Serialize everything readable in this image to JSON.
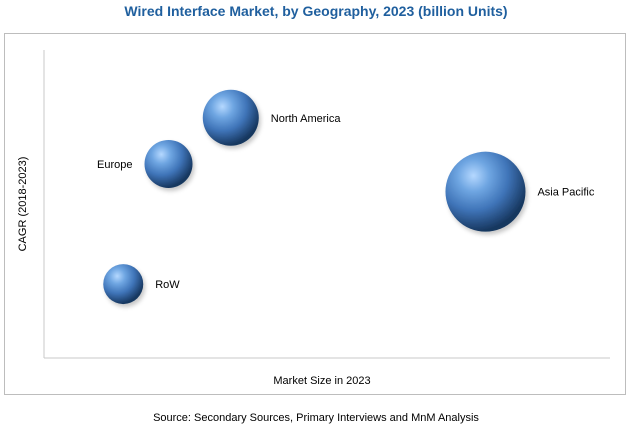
{
  "title": "Wired Interface Market, by Geography, 2023 (billion Units)",
  "source": "Source: Secondary Sources, Primary Interviews and MnM Analysis",
  "chart_data": {
    "type": "bubble",
    "title": "Wired Interface Market, by Geography, 2023 (billion Units)",
    "xlabel": "Market Size in 2023",
    "ylabel": "CAGR (2018-2023)",
    "xlim": [
      0,
      100
    ],
    "ylim": [
      0,
      100
    ],
    "grid": false,
    "legend": "none",
    "bubble_color": "#3f74b8",
    "points": [
      {
        "label": "North America",
        "x": 33,
        "y": 78,
        "size": 28
      },
      {
        "label": "Europe",
        "x": 22,
        "y": 63,
        "size": 24
      },
      {
        "label": "Asia Pacific",
        "x": 78,
        "y": 54,
        "size": 40
      },
      {
        "label": "RoW",
        "x": 14,
        "y": 24,
        "size": 20
      }
    ]
  }
}
